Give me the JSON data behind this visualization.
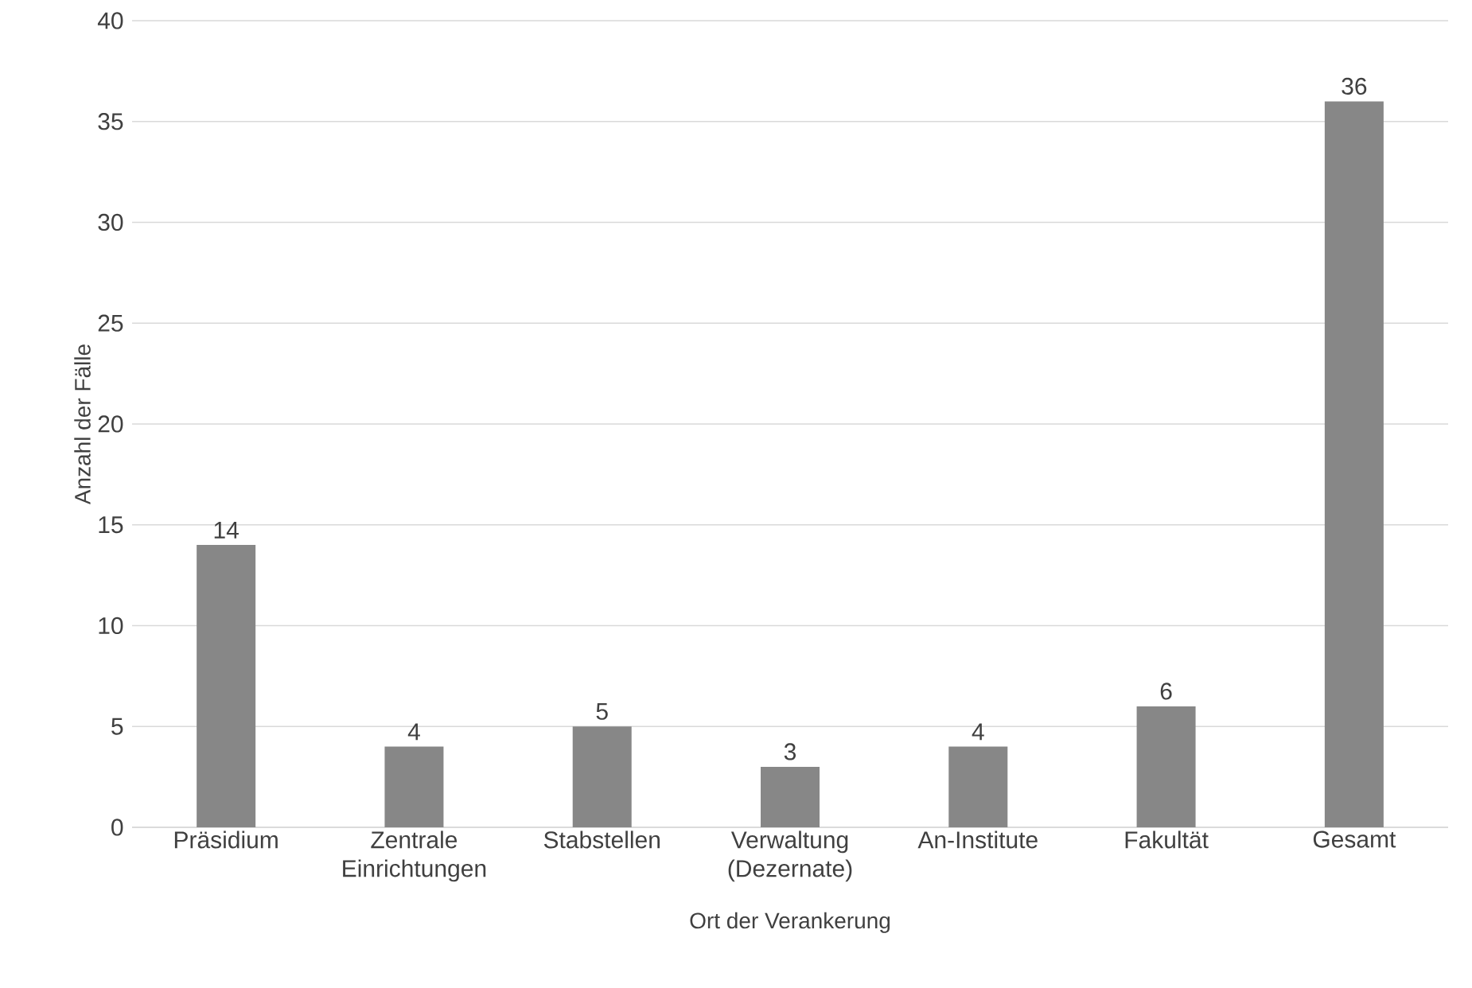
{
  "chart_data": {
    "type": "bar",
    "xlabel": "Ort der Verankerung",
    "ylabel": "Anzahl der Fälle",
    "categories": [
      "Präsidium",
      "Zentrale Einrichtungen",
      "Stabstellen",
      "Verwaltung (Dezernate)",
      "An-Institute",
      "Fakultät",
      "Gesamt"
    ],
    "values": [
      14,
      4,
      5,
      3,
      4,
      6,
      36
    ],
    "color": "#878787",
    "ylim": [
      0,
      40
    ],
    "yticks": [
      0,
      5,
      10,
      15,
      20,
      25,
      30,
      35,
      40
    ],
    "grid": "y",
    "data_labels": true
  }
}
